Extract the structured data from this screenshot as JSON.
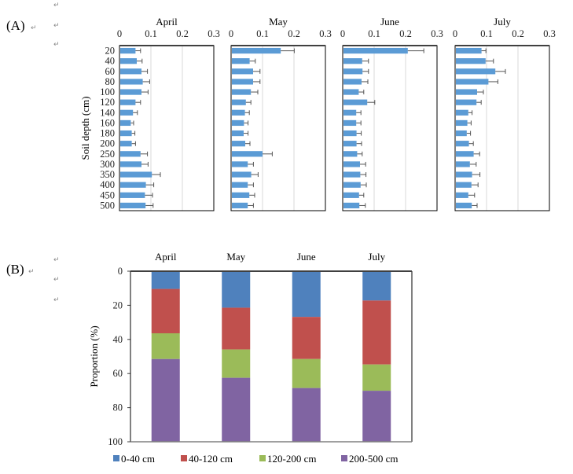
{
  "panel_labels": {
    "a": "(A)",
    "b": "(B)"
  },
  "paragraph_mark": "↵",
  "chart_data": [
    {
      "id": "A",
      "type": "bar",
      "orientation": "horizontal",
      "ylabel": "Soil depth (cm)",
      "xlim": [
        0,
        0.3
      ],
      "xticks": [
        "0",
        "0.1",
        "0.2",
        "0.3"
      ],
      "grid": true,
      "categories": [
        "20",
        "40",
        "60",
        "80",
        "100",
        "120",
        "140",
        "160",
        "180",
        "200",
        "250",
        "300",
        "350",
        "400",
        "450",
        "500"
      ],
      "color": "#5b9bd5",
      "panels": [
        {
          "title": "April",
          "values": [
            0.051,
            0.055,
            0.07,
            0.074,
            0.07,
            0.051,
            0.043,
            0.036,
            0.039,
            0.039,
            0.067,
            0.07,
            0.103,
            0.084,
            0.081,
            0.083
          ],
          "errors": [
            0.016,
            0.017,
            0.019,
            0.022,
            0.021,
            0.016,
            0.014,
            0.009,
            0.01,
            0.012,
            0.022,
            0.021,
            0.027,
            0.025,
            0.024,
            0.024
          ]
        },
        {
          "title": "May",
          "values": [
            0.158,
            0.059,
            0.07,
            0.07,
            0.063,
            0.047,
            0.044,
            0.041,
            0.04,
            0.045,
            0.1,
            0.053,
            0.064,
            0.053,
            0.058,
            0.053
          ],
          "errors": [
            0.043,
            0.018,
            0.022,
            0.022,
            0.022,
            0.016,
            0.014,
            0.013,
            0.014,
            0.015,
            0.031,
            0.018,
            0.022,
            0.018,
            0.017,
            0.018
          ]
        },
        {
          "title": "June",
          "values": [
            0.207,
            0.062,
            0.063,
            0.06,
            0.051,
            0.078,
            0.043,
            0.043,
            0.044,
            0.044,
            0.046,
            0.055,
            0.056,
            0.057,
            0.052,
            0.053
          ],
          "errors": [
            0.051,
            0.02,
            0.019,
            0.02,
            0.016,
            0.024,
            0.015,
            0.015,
            0.015,
            0.016,
            0.016,
            0.018,
            0.018,
            0.018,
            0.015,
            0.019
          ]
        },
        {
          "title": "July",
          "values": [
            0.084,
            0.097,
            0.128,
            0.106,
            0.07,
            0.068,
            0.042,
            0.039,
            0.037,
            0.044,
            0.059,
            0.047,
            0.054,
            0.052,
            0.042,
            0.053
          ],
          "errors": [
            0.014,
            0.025,
            0.032,
            0.03,
            0.02,
            0.015,
            0.012,
            0.012,
            0.012,
            0.014,
            0.019,
            0.02,
            0.025,
            0.021,
            0.02,
            0.017
          ]
        }
      ]
    },
    {
      "id": "B",
      "type": "bar",
      "stacked": true,
      "ylabel": "Proportion (%)",
      "ylim": [
        0,
        100
      ],
      "y_inverted": true,
      "yticks": [
        "0",
        "20",
        "40",
        "60",
        "80",
        "100"
      ],
      "categories": [
        "April",
        "May",
        "June",
        "July"
      ],
      "legend_position": "bottom",
      "series": [
        {
          "name": "0-40 cm",
          "color": "#4f81bd",
          "values": [
            10.4,
            21.4,
            26.8,
            17.2
          ]
        },
        {
          "name": "40-120 cm",
          "color": "#c0504d",
          "values": [
            26.0,
            24.5,
            24.7,
            37.5
          ]
        },
        {
          "name": "120-200 cm",
          "color": "#9bbb59",
          "values": [
            15.1,
            16.6,
            17.0,
            15.4
          ]
        },
        {
          "name": "200-500 cm",
          "color": "#8064a2",
          "values": [
            48.5,
            37.5,
            31.5,
            29.9
          ]
        }
      ]
    }
  ]
}
